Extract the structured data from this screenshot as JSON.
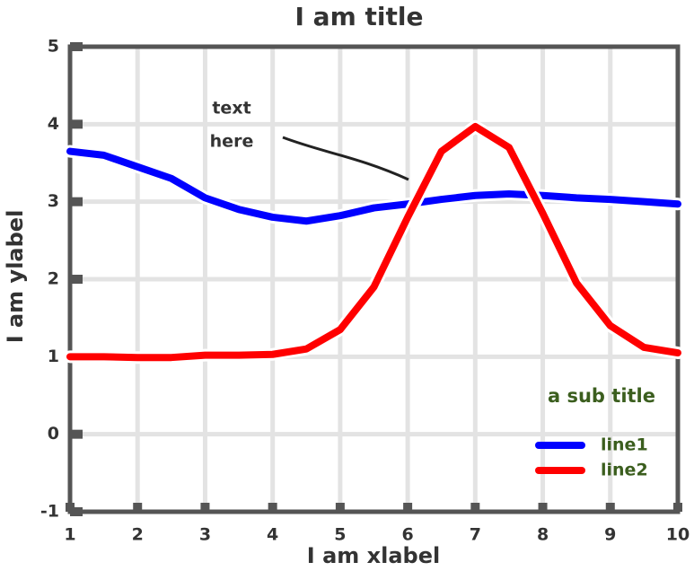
{
  "chart_data": {
    "type": "line",
    "title": "I am title",
    "xlabel": "I am xlabel",
    "ylabel": "I am ylabel",
    "legend_title": "a sub title",
    "legend": "lower right",
    "grid": true,
    "annotation": [
      "text",
      "here"
    ],
    "x": [
      1,
      1.5,
      2,
      2.5,
      3,
      3.5,
      4,
      4.5,
      5,
      5.5,
      6,
      6.5,
      7,
      7.5,
      8,
      8.5,
      9,
      9.5,
      10
    ],
    "series": [
      {
        "name": "line1",
        "color": "#0000ff",
        "values": [
          3.65,
          3.6,
          3.45,
          3.3,
          3.05,
          2.9,
          2.8,
          2.75,
          2.82,
          2.92,
          2.97,
          3.03,
          3.08,
          3.1,
          3.08,
          3.05,
          3.03,
          3.0,
          2.97
        ]
      },
      {
        "name": "line2",
        "color": "#ff0000",
        "values": [
          1.0,
          1.0,
          0.99,
          0.99,
          1.02,
          1.02,
          1.03,
          1.1,
          1.35,
          1.9,
          2.8,
          3.65,
          3.97,
          3.7,
          2.85,
          1.95,
          1.4,
          1.12,
          1.05
        ]
      }
    ],
    "xlim": [
      1,
      10
    ],
    "xticks": [
      1,
      2,
      3,
      4,
      5,
      6,
      7,
      8,
      9,
      10
    ],
    "ylim": [
      -1,
      5
    ],
    "yticks": [
      -1,
      0,
      1,
      2,
      3,
      4,
      5
    ]
  }
}
